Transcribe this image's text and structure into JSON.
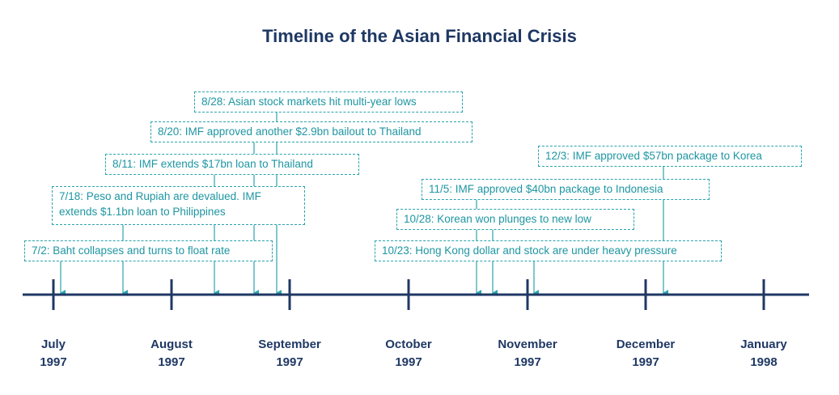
{
  "title": "Timeline of the Asian Financial Crisis",
  "colors": {
    "axis": "#1f3864",
    "event": "#2ba3ad",
    "title": "#1f3864"
  },
  "months": [
    {
      "month": "July",
      "year": "1997"
    },
    {
      "month": "August",
      "year": "1997"
    },
    {
      "month": "September",
      "year": "1997"
    },
    {
      "month": "October",
      "year": "1997"
    },
    {
      "month": "November",
      "year": "1997"
    },
    {
      "month": "December",
      "year": "1997"
    },
    {
      "month": "January",
      "year": "1998"
    }
  ],
  "events": [
    {
      "date": "7/2",
      "text": "7/2: Baht collapses and turns to float rate"
    },
    {
      "date": "7/18",
      "text": "7/18: Peso and Rupiah are devalued. IMF extends $1.1bn loan to Philippines"
    },
    {
      "date": "8/11",
      "text": "8/11: IMF extends $17bn loan to Thailand"
    },
    {
      "date": "8/20",
      "text": "8/20: IMF approved another $2.9bn bailout to Thailand"
    },
    {
      "date": "8/28",
      "text": "8/28: Asian stock markets hit multi-year lows"
    },
    {
      "date": "10/23",
      "text": "10/23: Hong Kong dollar and stock are under heavy pressure"
    },
    {
      "date": "10/28",
      "text": "10/28: Korean won plunges to new low"
    },
    {
      "date": "11/5",
      "text": "11/5: IMF approved $40bn package to Indonesia"
    },
    {
      "date": "12/3",
      "text": "12/3: IMF approved $57bn package to Korea"
    }
  ]
}
